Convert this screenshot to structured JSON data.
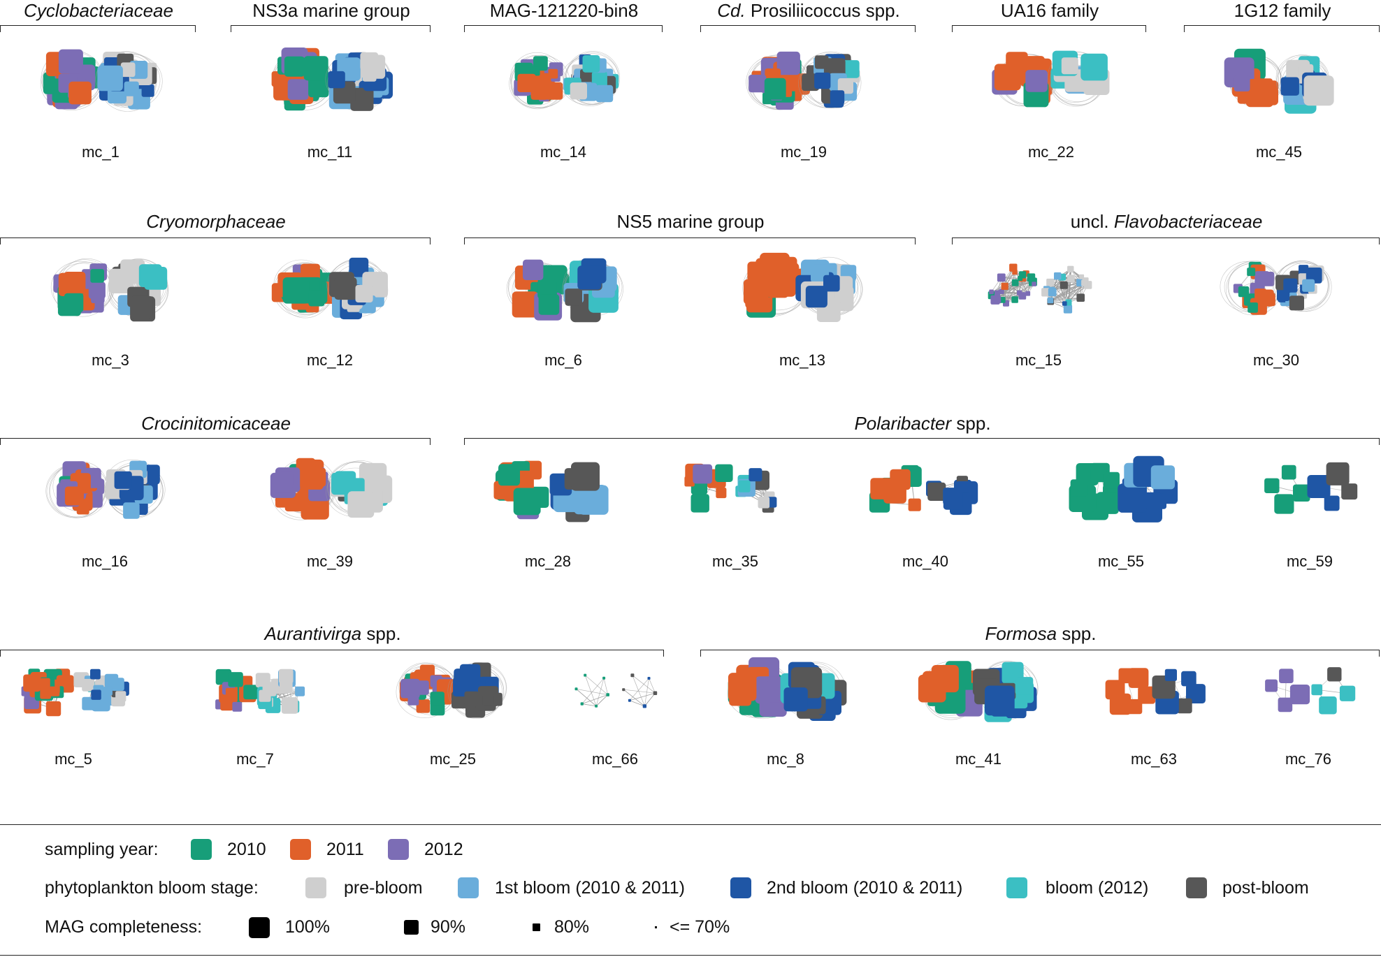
{
  "colors": {
    "y2010": "#179e79",
    "y2011": "#e0602a",
    "y2012": "#7c6db5",
    "pre_bloom": "#cfcfcf",
    "bloom1": "#6aaddb",
    "bloom2": "#1f56a5",
    "bloom2012": "#3bbfc3",
    "post_bloom": "#575757",
    "edge": "#9a9a9a"
  },
  "groups": [
    {
      "id": "cyclo",
      "name": "Cyclobacteriaceae",
      "italic": "Cyclobacteriaceae",
      "rest": ""
    },
    {
      "id": "ns3a",
      "name": "NS3a marine group",
      "italic": "",
      "rest": "NS3a marine group"
    },
    {
      "id": "mag",
      "name": "MAG-121220-bin8",
      "italic": "",
      "rest": "MAG-121220-bin8"
    },
    {
      "id": "cdpro",
      "name": "Cd. Prosiliicoccus spp.",
      "italic": "Cd.",
      "rest": " Prosiliicoccus spp."
    },
    {
      "id": "ua16",
      "name": "UA16 family",
      "italic": "",
      "rest": "UA16 family"
    },
    {
      "id": "g1g12",
      "name": "1G12 family",
      "italic": "",
      "rest": "1G12 family"
    },
    {
      "id": "cryo",
      "name": "Cryomorphaceae",
      "italic": "Cryomorphaceae",
      "rest": ""
    },
    {
      "id": "ns5",
      "name": "NS5 marine group",
      "italic": "",
      "rest": "NS5 marine group"
    },
    {
      "id": "uncl",
      "name": "uncl. Flavobacteriaceae",
      "prefix": "uncl. ",
      "italic": "Flavobacteriaceae",
      "rest": ""
    },
    {
      "id": "croc",
      "name": "Crocinitomicaceae",
      "italic": "Crocinitomicaceae",
      "rest": ""
    },
    {
      "id": "pola",
      "name": "Polaribacter spp.",
      "italic": "Polaribacter",
      "rest": " spp."
    },
    {
      "id": "aura",
      "name": "Aurantivirga spp.",
      "italic": "Aurantivirga",
      "rest": " spp."
    },
    {
      "id": "form",
      "name": "Formosa spp.",
      "italic": "Formosa",
      "rest": " spp."
    }
  ],
  "clusters": [
    {
      "label": "mc_1",
      "year": {
        "y2010": 0.35,
        "y2011": 0.4,
        "y2012": 0.25
      },
      "stage": {
        "pre_bloom": 0.45,
        "bloom1": 0.3,
        "bloom2": 0.15,
        "post_bloom": 0.1
      },
      "n": 22,
      "avg_size": 1.0,
      "density": "dense"
    },
    {
      "label": "mc_11",
      "year": {
        "y2010": 0.2,
        "y2011": 0.55,
        "y2012": 0.25
      },
      "stage": {
        "pre_bloom": 0.35,
        "bloom1": 0.3,
        "bloom2": 0.25,
        "post_bloom": 0.1
      },
      "n": 20,
      "avg_size": 1.05,
      "density": "dense"
    },
    {
      "label": "mc_14",
      "year": {
        "y2010": 0.3,
        "y2011": 0.45,
        "y2012": 0.25
      },
      "stage": {
        "pre_bloom": 0.3,
        "bloom1": 0.2,
        "bloom2": 0.1,
        "bloom2012": 0.2,
        "post_bloom": 0.2
      },
      "n": 24,
      "avg_size": 0.7,
      "density": "dense"
    },
    {
      "label": "mc_19",
      "year": {
        "y2010": 0.3,
        "y2011": 0.5,
        "y2012": 0.2
      },
      "stage": {
        "pre_bloom": 0.1,
        "bloom1": 0.3,
        "bloom2": 0.35,
        "bloom2012": 0.1,
        "post_bloom": 0.15
      },
      "n": 22,
      "avg_size": 0.9,
      "density": "dense"
    },
    {
      "label": "mc_22",
      "year": {
        "y2010": 0.05,
        "y2011": 0.75,
        "y2012": 0.2
      },
      "stage": {
        "pre_bloom": 0.45,
        "bloom1": 0.2,
        "bloom2012": 0.15,
        "post_bloom": 0.2
      },
      "n": 14,
      "avg_size": 1.1,
      "density": "dense"
    },
    {
      "label": "mc_45",
      "year": {
        "y2010": 0.1,
        "y2011": 0.65,
        "y2012": 0.25
      },
      "stage": {
        "pre_bloom": 0.15,
        "bloom1": 0.2,
        "bloom2": 0.25,
        "bloom2012": 0.2,
        "post_bloom": 0.2
      },
      "n": 11,
      "avg_size": 1.2,
      "density": "dense"
    },
    {
      "label": "mc_3",
      "year": {
        "y2010": 0.35,
        "y2011": 0.15,
        "y2012": 0.5
      },
      "stage": {
        "pre_bloom": 0.45,
        "bloom1": 0.1,
        "bloom2": 0.1,
        "bloom2012": 0.1,
        "post_bloom": 0.25
      },
      "n": 20,
      "avg_size": 0.95,
      "density": "dense"
    },
    {
      "label": "mc_12",
      "year": {
        "y2010": 0.35,
        "y2011": 0.45,
        "y2012": 0.2
      },
      "stage": {
        "pre_bloom": 0.3,
        "bloom1": 0.3,
        "bloom2": 0.2,
        "post_bloom": 0.2
      },
      "n": 22,
      "avg_size": 1.0,
      "density": "dense"
    },
    {
      "label": "mc_6",
      "year": {
        "y2010": 0.45,
        "y2011": 0.25,
        "y2012": 0.3
      },
      "stage": {
        "pre_bloom": 0.1,
        "bloom1": 0.35,
        "bloom2": 0.3,
        "bloom2012": 0.1,
        "post_bloom": 0.15
      },
      "n": 14,
      "avg_size": 1.15,
      "density": "dense"
    },
    {
      "label": "mc_13",
      "year": {
        "y2010": 0.3,
        "y2011": 0.5,
        "y2012": 0.2
      },
      "stage": {
        "pre_bloom": 0.25,
        "bloom1": 0.35,
        "bloom2": 0.3,
        "post_bloom": 0.1
      },
      "n": 20,
      "avg_size": 1.15,
      "density": "dense"
    },
    {
      "label": "mc_15",
      "year": {
        "y2010": 0.4,
        "y2011": 0.25,
        "y2012": 0.35
      },
      "stage": {
        "pre_bloom": 0.45,
        "bloom1": 0.25,
        "bloom2": 0.1,
        "bloom2012": 0.1,
        "post_bloom": 0.1
      },
      "n": 24,
      "avg_size": 0.35,
      "density": "mesh"
    },
    {
      "label": "mc_30",
      "year": {
        "y2010": 0.25,
        "y2011": 0.65,
        "y2012": 0.1
      },
      "stage": {
        "pre_bloom": 0.2,
        "bloom1": 0.2,
        "bloom2": 0.4,
        "post_bloom": 0.2
      },
      "n": 18,
      "avg_size": 0.65,
      "density": "dense"
    },
    {
      "label": "mc_16",
      "year": {
        "y2010": 0.1,
        "y2011": 0.55,
        "y2012": 0.35
      },
      "stage": {
        "pre_bloom": 0.4,
        "bloom1": 0.25,
        "bloom2": 0.15,
        "bloom2012": 0.05,
        "post_bloom": 0.15
      },
      "n": 20,
      "avg_size": 0.95,
      "density": "dense"
    },
    {
      "label": "mc_39",
      "year": {
        "y2010": 0.05,
        "y2011": 0.6,
        "y2012": 0.35
      },
      "stage": {
        "pre_bloom": 0.6,
        "bloom1": 0.15,
        "bloom2012": 0.15,
        "post_bloom": 0.1
      },
      "n": 16,
      "avg_size": 1.1,
      "density": "dense"
    },
    {
      "label": "mc_28",
      "year": {
        "y2010": 0.45,
        "y2011": 0.4,
        "y2012": 0.15
      },
      "stage": {
        "bloom1": 0.5,
        "bloom2": 0.3,
        "post_bloom": 0.2
      },
      "n": 10,
      "avg_size": 1.2,
      "density": "sparse"
    },
    {
      "label": "mc_35",
      "year": {
        "y2010": 0.3,
        "y2011": 0.5,
        "y2012": 0.2
      },
      "stage": {
        "pre_bloom": 0.2,
        "bloom1": 0.1,
        "bloom2": 0.35,
        "bloom2012": 0.15,
        "post_bloom": 0.2
      },
      "n": 10,
      "avg_size": 0.75,
      "density": "mesh"
    },
    {
      "label": "mc_40",
      "year": {
        "y2010": 0.6,
        "y2011": 0.4
      },
      "stage": {
        "bloom2": 0.8,
        "post_bloom": 0.2
      },
      "n": 8,
      "avg_size": 0.9,
      "density": "mesh"
    },
    {
      "label": "mc_55",
      "year": {
        "y2010": 1.0
      },
      "stage": {
        "bloom1": 0.4,
        "bloom2": 0.6
      },
      "n": 8,
      "avg_size": 1.2,
      "density": "ring"
    },
    {
      "label": "mc_59",
      "year": {
        "y2010": 1.0
      },
      "stage": {
        "bloom2": 0.75,
        "post_bloom": 0.25
      },
      "n": 4,
      "avg_size": 0.9,
      "density": "sparse"
    },
    {
      "label": "mc_5",
      "year": {
        "y2010": 0.3,
        "y2011": 0.45,
        "y2012": 0.25
      },
      "stage": {
        "pre_bloom": 0.4,
        "bloom1": 0.25,
        "bloom2": 0.2,
        "bloom2012": 0.05,
        "post_bloom": 0.1
      },
      "n": 22,
      "avg_size": 0.7,
      "density": "mesh"
    },
    {
      "label": "mc_7",
      "year": {
        "y2010": 0.35,
        "y2011": 0.35,
        "y2012": 0.3
      },
      "stage": {
        "pre_bloom": 0.5,
        "bloom1": 0.1,
        "bloom2012": 0.25,
        "post_bloom": 0.15
      },
      "n": 14,
      "avg_size": 0.75,
      "density": "mesh"
    },
    {
      "label": "mc_25",
      "year": {
        "y2010": 0.25,
        "y2011": 0.6,
        "y2012": 0.15
      },
      "stage": {
        "bloom2": 0.5,
        "post_bloom": 0.5
      },
      "n": 18,
      "avg_size": 0.85,
      "density": "dense"
    },
    {
      "label": "mc_66",
      "year": {
        "y2010": 1.0
      },
      "stage": {
        "bloom2": 0.5,
        "post_bloom": 0.5
      },
      "n": 6,
      "avg_size": 0.15,
      "density": "mesh"
    },
    {
      "label": "mc_8",
      "year": {
        "y2010": 0.35,
        "y2011": 0.4,
        "y2012": 0.25
      },
      "stage": {
        "bloom2": 0.55,
        "post_bloom": 0.35,
        "bloom2012": 0.1
      },
      "n": 20,
      "avg_size": 1.2,
      "density": "dense"
    },
    {
      "label": "mc_41",
      "year": {
        "y2010": 0.15,
        "y2011": 0.55,
        "y2012": 0.3
      },
      "stage": {
        "bloom2": 0.4,
        "post_bloom": 0.5,
        "bloom2012": 0.1
      },
      "n": 14,
      "avg_size": 1.2,
      "density": "dense"
    },
    {
      "label": "mc_63",
      "year": {
        "y2011": 1.0
      },
      "stage": {
        "bloom2": 0.5,
        "post_bloom": 0.5
      },
      "n": 6,
      "avg_size": 0.9,
      "density": "sparse"
    },
    {
      "label": "mc_76",
      "year": {
        "y2012": 1.0
      },
      "stage": {
        "bloom2012": 0.6,
        "post_bloom": 0.4
      },
      "n": 4,
      "avg_size": 0.8,
      "density": "sparse"
    }
  ],
  "legend": {
    "year_label": "sampling year:",
    "years": [
      {
        "key": "y2010",
        "label": "2010"
      },
      {
        "key": "y2011",
        "label": "2011"
      },
      {
        "key": "y2012",
        "label": "2012"
      }
    ],
    "stage_label": "phytoplankton bloom stage:",
    "stages": [
      {
        "key": "pre_bloom",
        "label": "pre-bloom"
      },
      {
        "key": "bloom1",
        "label": "1st bloom (2010 & 2011)"
      },
      {
        "key": "bloom2",
        "label": "2nd bloom (2010 & 2011)"
      },
      {
        "key": "bloom2012",
        "label": "bloom (2012)"
      },
      {
        "key": "post_bloom",
        "label": "post-bloom"
      }
    ],
    "completeness_label": "MAG completeness:",
    "completeness": [
      {
        "value": 100,
        "label": "100%"
      },
      {
        "value": 90,
        "label": "90%"
      },
      {
        "value": 80,
        "label": "80%"
      },
      {
        "value": 70,
        "label": "<= 70%"
      }
    ]
  }
}
